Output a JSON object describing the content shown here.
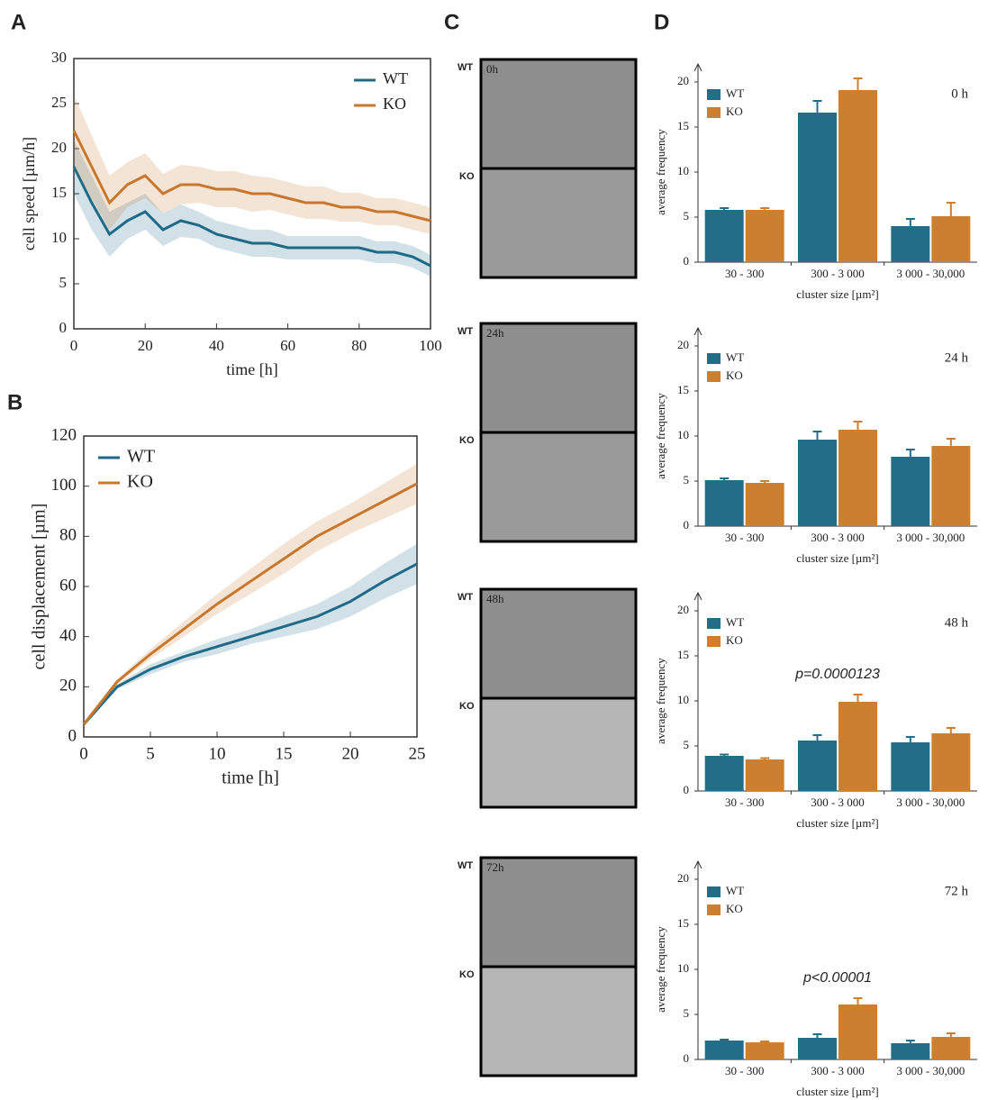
{
  "panel_labels": [
    "A",
    "B",
    "C",
    "D"
  ],
  "images": [
    {
      "time": "0h",
      "top": "WT",
      "bottom": "KO"
    },
    {
      "time": "24h",
      "top": "WT",
      "bottom": "KO"
    },
    {
      "time": "48h",
      "top": "WT",
      "bottom": "KO"
    },
    {
      "time": "72h",
      "top": "WT",
      "bottom": "KO"
    }
  ],
  "chart_data": [
    {
      "type": "line",
      "xlabel": "time [h]",
      "ylabel": "cell speed [µm/h]",
      "x": [
        0,
        5,
        10,
        15,
        20,
        25,
        30,
        35,
        40,
        45,
        50,
        55,
        60,
        65,
        70,
        75,
        80,
        85,
        90,
        95,
        100
      ],
      "xlim": [
        0,
        100
      ],
      "xticks": [
        0,
        20,
        40,
        60,
        80,
        100
      ],
      "ylim": [
        0,
        30
      ],
      "yticks": [
        0,
        5,
        10,
        15,
        20,
        25,
        30
      ],
      "legend": "upper right",
      "series": [
        {
          "name": "WT",
          "color": "#1f6b87",
          "values": [
            18,
            14,
            10.5,
            12,
            13,
            11,
            12,
            11.5,
            10.5,
            10,
            9.5,
            9.5,
            9,
            9,
            9,
            9,
            9,
            8.5,
            8.5,
            8,
            7
          ],
          "errors": [
            3,
            3,
            2.5,
            2,
            2,
            1.8,
            1.8,
            1.5,
            1.5,
            1.5,
            1.5,
            1.5,
            1.3,
            1.3,
            1.3,
            1.3,
            1.3,
            1.2,
            1.2,
            1.2,
            1.2
          ]
        },
        {
          "name": "KO",
          "color": "#c8772c",
          "values": [
            22,
            18,
            14,
            16,
            17,
            15,
            16,
            16,
            15.5,
            15.5,
            15,
            15,
            14.5,
            14,
            14,
            13.5,
            13.5,
            13,
            13,
            12.5,
            12
          ],
          "errors": [
            4,
            3.5,
            3,
            2.5,
            2.5,
            2.2,
            2.2,
            2,
            2,
            2,
            2,
            1.8,
            1.8,
            1.8,
            1.8,
            1.6,
            1.6,
            1.5,
            1.5,
            1.5,
            1.5
          ]
        }
      ]
    },
    {
      "type": "line",
      "xlabel": "time [h]",
      "ylabel": "cell displacement [µm]",
      "x": [
        0,
        2.5,
        5,
        7.5,
        10,
        12.5,
        15,
        17.5,
        20,
        22.5,
        25
      ],
      "xlim": [
        0,
        25
      ],
      "xticks": [
        0,
        5,
        10,
        15,
        20,
        25
      ],
      "ylim": [
        0,
        120
      ],
      "yticks": [
        0,
        20,
        40,
        60,
        80,
        100,
        120
      ],
      "legend": "upper left",
      "series": [
        {
          "name": "WT",
          "color": "#1f6b87",
          "values": [
            5,
            20,
            27,
            32,
            36,
            40,
            44,
            48,
            54,
            62,
            69
          ],
          "errors": [
            0,
            1,
            2,
            2,
            3,
            3,
            4,
            5,
            6,
            7,
            8
          ]
        },
        {
          "name": "KO",
          "color": "#c8772c",
          "values": [
            5,
            22,
            33,
            43,
            53,
            62,
            71,
            80,
            87,
            94,
            101
          ],
          "errors": [
            0,
            1,
            2,
            3,
            4,
            5,
            6,
            6,
            6,
            7,
            8
          ]
        }
      ]
    },
    {
      "type": "bar",
      "title": "0 h",
      "xlabel": "cluster size [µm²]",
      "ylabel": "average frequency",
      "categories": [
        "30 - 300",
        "300 - 3 000",
        "3 000 - 30,000"
      ],
      "ylim": [
        0,
        22
      ],
      "yticks": [
        0,
        5,
        10,
        15,
        20
      ],
      "series": [
        {
          "name": "WT",
          "color": "#246d87",
          "values": [
            5.8,
            16.6,
            4.0
          ],
          "errors": [
            0.2,
            1.3,
            0.8
          ]
        },
        {
          "name": "KO",
          "color": "#cc7f2e",
          "values": [
            5.8,
            19.1,
            5.1
          ],
          "errors": [
            0.2,
            1.3,
            1.5
          ]
        }
      ]
    },
    {
      "type": "bar",
      "title": "24 h",
      "xlabel": "cluster size [µm²]",
      "ylabel": "average frequency",
      "categories": [
        "30 - 300",
        "300 - 3 000",
        "3 000 - 30,000"
      ],
      "ylim": [
        0,
        22
      ],
      "yticks": [
        0,
        5,
        10,
        15,
        20
      ],
      "series": [
        {
          "name": "WT",
          "color": "#246d87",
          "values": [
            5.1,
            9.6,
            7.7
          ],
          "errors": [
            0.2,
            0.9,
            0.8
          ]
        },
        {
          "name": "KO",
          "color": "#cc7f2e",
          "values": [
            4.8,
            10.7,
            8.9
          ],
          "errors": [
            0.2,
            0.9,
            0.8
          ]
        }
      ]
    },
    {
      "type": "bar",
      "title": "48 h",
      "xlabel": "cluster size [µm²]",
      "ylabel": "average frequency",
      "annotation": "p=0.0000123",
      "categories": [
        "30 - 300",
        "300 - 3 000",
        "3 000 - 30,000"
      ],
      "ylim": [
        0,
        22
      ],
      "yticks": [
        0,
        5,
        10,
        15,
        20
      ],
      "series": [
        {
          "name": "WT",
          "color": "#246d87",
          "values": [
            3.9,
            5.6,
            5.4
          ],
          "errors": [
            0.15,
            0.6,
            0.6
          ]
        },
        {
          "name": "KO",
          "color": "#cc7f2e",
          "values": [
            3.5,
            9.9,
            6.4
          ],
          "errors": [
            0.15,
            0.8,
            0.6
          ]
        }
      ]
    },
    {
      "type": "bar",
      "title": "72 h",
      "xlabel": "cluster size [µm²]",
      "ylabel": "average frequency",
      "annotation": "p<0.00001",
      "categories": [
        "30 - 300",
        "300 - 3 000",
        "3 000 - 30,000"
      ],
      "ylim": [
        0,
        22
      ],
      "yticks": [
        0,
        5,
        10,
        15,
        20
      ],
      "series": [
        {
          "name": "WT",
          "color": "#246d87",
          "values": [
            2.1,
            2.4,
            1.8
          ],
          "errors": [
            0.1,
            0.4,
            0.3
          ]
        },
        {
          "name": "KO",
          "color": "#cc7f2e",
          "values": [
            1.9,
            6.1,
            2.5
          ],
          "errors": [
            0.1,
            0.7,
            0.4
          ]
        }
      ]
    }
  ]
}
